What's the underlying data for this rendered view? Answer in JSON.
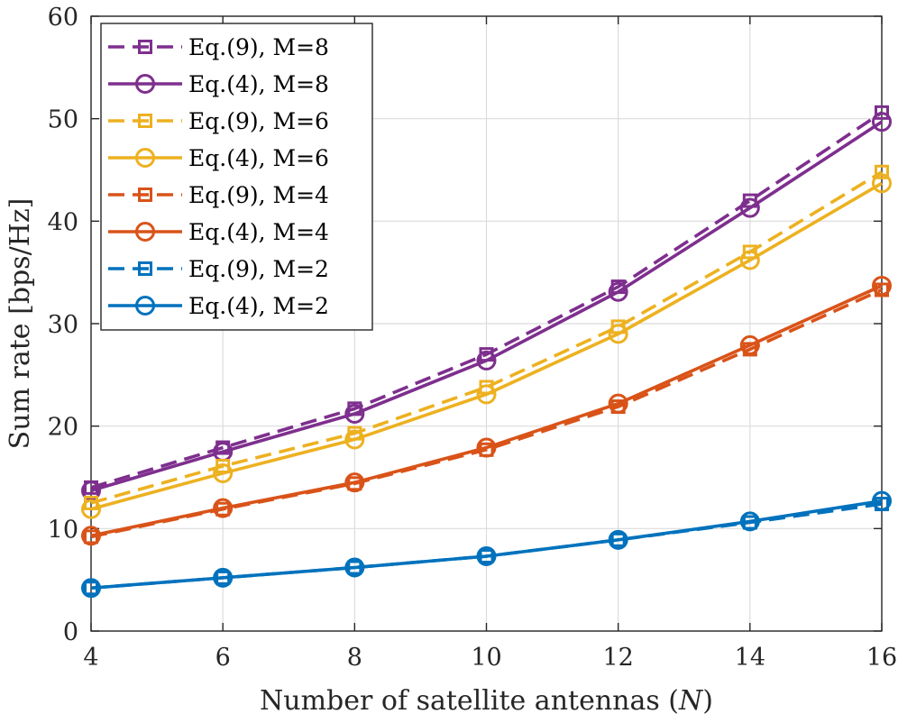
{
  "chart_data": {
    "type": "line",
    "title": "",
    "xlabel": "Number of satellite antennas",
    "xlabel_var": "N",
    "ylabel": "Sum rate [bps/Hz]",
    "xlim": [
      4,
      16
    ],
    "ylim": [
      0,
      60
    ],
    "xticks": [
      "4",
      "6",
      "8",
      "10",
      "12",
      "14",
      "16"
    ],
    "yticks": [
      "0",
      "10",
      "20",
      "30",
      "40",
      "50",
      "60"
    ],
    "grid": true,
    "legend_position": "top-left",
    "x": [
      4,
      6,
      8,
      10,
      12,
      14,
      16
    ],
    "series": [
      {
        "name": "Eq.(9), M=8",
        "color": "#7e2f8e",
        "dash": true,
        "marker": "square",
        "values": [
          14.0,
          17.9,
          21.7,
          27.0,
          33.6,
          42.0,
          50.6
        ]
      },
      {
        "name": "Eq.(4), M=8",
        "color": "#7e2f8e",
        "dash": false,
        "marker": "circle",
        "values": [
          13.7,
          17.5,
          21.2,
          26.4,
          33.1,
          41.3,
          49.7
        ]
      },
      {
        "name": "Eq.(9), M=6",
        "color": "#edb120",
        "dash": true,
        "marker": "square",
        "values": [
          12.5,
          16.1,
          19.3,
          23.8,
          29.7,
          37.0,
          44.8
        ]
      },
      {
        "name": "Eq.(4), M=6",
        "color": "#edb120",
        "dash": false,
        "marker": "circle",
        "values": [
          11.9,
          15.4,
          18.7,
          23.1,
          29.0,
          36.2,
          43.7
        ]
      },
      {
        "name": "Eq.(9), M=4",
        "color": "#d95319",
        "dash": true,
        "marker": "square",
        "values": [
          9.2,
          11.9,
          14.4,
          17.7,
          21.9,
          27.5,
          33.3
        ]
      },
      {
        "name": "Eq.(4), M=4",
        "color": "#d95319",
        "dash": false,
        "marker": "circle",
        "values": [
          9.3,
          12.0,
          14.5,
          17.9,
          22.2,
          27.9,
          33.7
        ]
      },
      {
        "name": "Eq.(9), M=2",
        "color": "#0072bd",
        "dash": true,
        "marker": "square",
        "values": [
          4.2,
          5.2,
          6.2,
          7.3,
          8.9,
          10.6,
          12.4
        ]
      },
      {
        "name": "Eq.(4), M=2",
        "color": "#0072bd",
        "dash": false,
        "marker": "circle",
        "values": [
          4.2,
          5.2,
          6.2,
          7.3,
          8.9,
          10.7,
          12.7
        ]
      }
    ]
  }
}
